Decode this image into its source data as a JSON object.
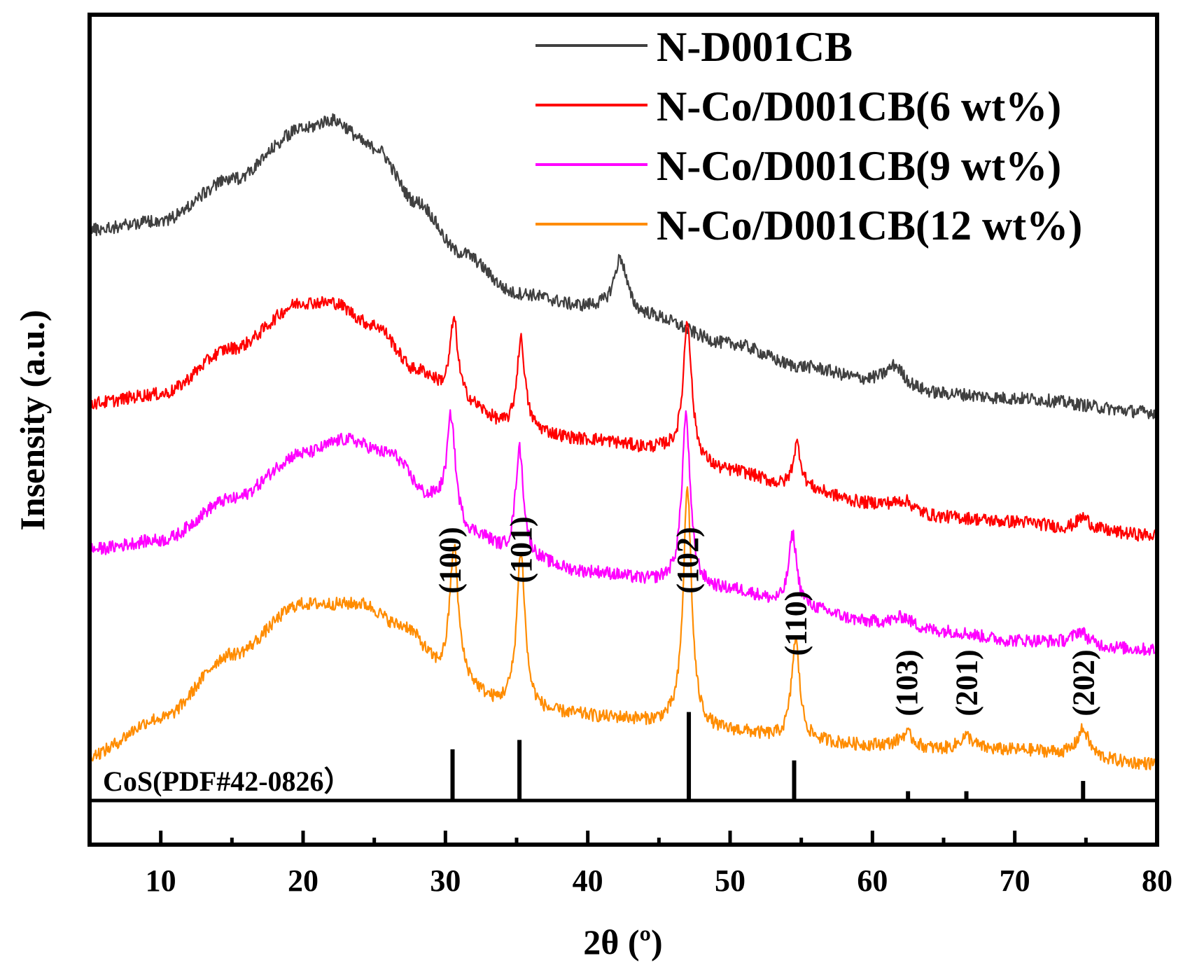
{
  "chart_data": {
    "type": "line",
    "xlabel": "2θ (º)",
    "ylabel": "Insensity (a.u.)",
    "xlim": [
      5,
      80
    ],
    "x_ticks": [
      10,
      20,
      30,
      40,
      50,
      60,
      70,
      80
    ],
    "x_tick_labels": [
      "10",
      "20",
      "30",
      "40",
      "50",
      "60",
      "70",
      "80"
    ],
    "legend_position": "top-right",
    "series": [
      {
        "name": "N-D001CB",
        "color": "#404040",
        "baseline": [
          [
            5,
            0.8
          ],
          [
            10,
            0.82
          ],
          [
            15,
            0.91
          ],
          [
            20,
            1.02
          ],
          [
            22,
            1.04
          ],
          [
            25,
            0.98
          ],
          [
            28,
            0.86
          ],
          [
            31,
            0.75
          ],
          [
            35,
            0.66
          ],
          [
            40,
            0.63
          ],
          [
            44,
            0.61
          ],
          [
            50,
            0.55
          ],
          [
            55,
            0.5
          ],
          [
            60,
            0.47
          ],
          [
            65,
            0.44
          ],
          [
            70,
            0.43
          ],
          [
            80,
            0.4
          ]
        ],
        "peaks": [
          {
            "x": 42.3,
            "height": 0.12,
            "width": 0.55
          },
          {
            "x": 61.6,
            "height": 0.04,
            "width": 0.7
          }
        ]
      },
      {
        "name": "N-Co/D001CB(6 wt%)",
        "color": "#ff0000",
        "baseline": [
          [
            5,
            0.42
          ],
          [
            10,
            0.44
          ],
          [
            15,
            0.54
          ],
          [
            20,
            0.64
          ],
          [
            22,
            0.64
          ],
          [
            25,
            0.59
          ],
          [
            28,
            0.49
          ],
          [
            31,
            0.42
          ],
          [
            35,
            0.36
          ],
          [
            40,
            0.34
          ],
          [
            45,
            0.32
          ],
          [
            50,
            0.27
          ],
          [
            55,
            0.23
          ],
          [
            60,
            0.2
          ],
          [
            65,
            0.17
          ],
          [
            70,
            0.16
          ],
          [
            75,
            0.14
          ],
          [
            80,
            0.13
          ]
        ],
        "peaks": [
          {
            "x": 30.6,
            "height": 0.18,
            "width": 0.35
          },
          {
            "x": 35.3,
            "height": 0.2,
            "width": 0.35
          },
          {
            "x": 47.0,
            "height": 0.3,
            "width": 0.35
          },
          {
            "x": 54.7,
            "height": 0.1,
            "width": 0.35
          },
          {
            "x": 62.3,
            "height": 0.02,
            "width": 0.7
          },
          {
            "x": 74.8,
            "height": 0.03,
            "width": 0.6
          }
        ]
      },
      {
        "name": "N-Co/D001CB(9 wt%)",
        "color": "#ff00ff",
        "baseline": [
          [
            5,
            0.1
          ],
          [
            10,
            0.12
          ],
          [
            15,
            0.21
          ],
          [
            20,
            0.31
          ],
          [
            23,
            0.34
          ],
          [
            26,
            0.31
          ],
          [
            29,
            0.21
          ],
          [
            32,
            0.13
          ],
          [
            35,
            0.08
          ],
          [
            40,
            0.05
          ],
          [
            45,
            0.03
          ],
          [
            50,
            0.01
          ],
          [
            55,
            -0.03
          ],
          [
            60,
            -0.06
          ],
          [
            65,
            -0.08
          ],
          [
            70,
            -0.1
          ],
          [
            80,
            -0.12
          ]
        ],
        "peaks": [
          {
            "x": 30.4,
            "height": 0.22,
            "width": 0.35
          },
          {
            "x": 35.2,
            "height": 0.24,
            "width": 0.35
          },
          {
            "x": 46.9,
            "height": 0.37,
            "width": 0.35
          },
          {
            "x": 54.4,
            "height": 0.16,
            "width": 0.35
          },
          {
            "x": 62.2,
            "height": 0.02,
            "width": 0.7
          },
          {
            "x": 74.6,
            "height": 0.03,
            "width": 0.6
          }
        ]
      },
      {
        "name": "N-Co/D001CB(12 wt%)",
        "color": "#ff8c00",
        "baseline": [
          [
            5,
            -0.35
          ],
          [
            10,
            -0.27
          ],
          [
            15,
            -0.13
          ],
          [
            20,
            -0.02
          ],
          [
            24,
            -0.02
          ],
          [
            27,
            -0.07
          ],
          [
            30,
            -0.17
          ],
          [
            34,
            -0.24
          ],
          [
            38,
            -0.26
          ],
          [
            42,
            -0.27
          ],
          [
            45,
            -0.28
          ],
          [
            50,
            -0.3
          ],
          [
            55,
            -0.32
          ],
          [
            60,
            -0.33
          ],
          [
            65,
            -0.34
          ],
          [
            70,
            -0.34
          ],
          [
            80,
            -0.37
          ]
        ],
        "peaks": [
          {
            "x": 30.6,
            "height": 0.28,
            "width": 0.35
          },
          {
            "x": 35.3,
            "height": 0.34,
            "width": 0.35
          },
          {
            "x": 47.0,
            "height": 0.52,
            "width": 0.35
          },
          {
            "x": 54.6,
            "height": 0.22,
            "width": 0.35
          },
          {
            "x": 62.4,
            "height": 0.03,
            "width": 0.6
          },
          {
            "x": 66.6,
            "height": 0.03,
            "width": 0.6
          },
          {
            "x": 74.8,
            "height": 0.06,
            "width": 0.5
          }
        ]
      }
    ],
    "hkl_labels": [
      {
        "text": "(100)",
        "x": 30.6
      },
      {
        "text": "(101)",
        "x": 35.3
      },
      {
        "text": "(102)",
        "x": 47.0
      },
      {
        "text": "(110)",
        "x": 54.6
      },
      {
        "text": "(103)",
        "x": 62.4
      },
      {
        "text": "(201)",
        "x": 66.6
      },
      {
        "text": "(202)",
        "x": 74.8
      }
    ],
    "reference": {
      "label": "CoS(PDF#42-0826）",
      "lines": [
        {
          "x": 30.5,
          "intensity": 0.55
        },
        {
          "x": 35.2,
          "intensity": 0.65
        },
        {
          "x": 47.1,
          "intensity": 0.95
        },
        {
          "x": 54.5,
          "intensity": 0.43
        },
        {
          "x": 62.5,
          "intensity": 0.1
        },
        {
          "x": 66.6,
          "intensity": 0.1
        },
        {
          "x": 74.8,
          "intensity": 0.21
        }
      ]
    }
  }
}
